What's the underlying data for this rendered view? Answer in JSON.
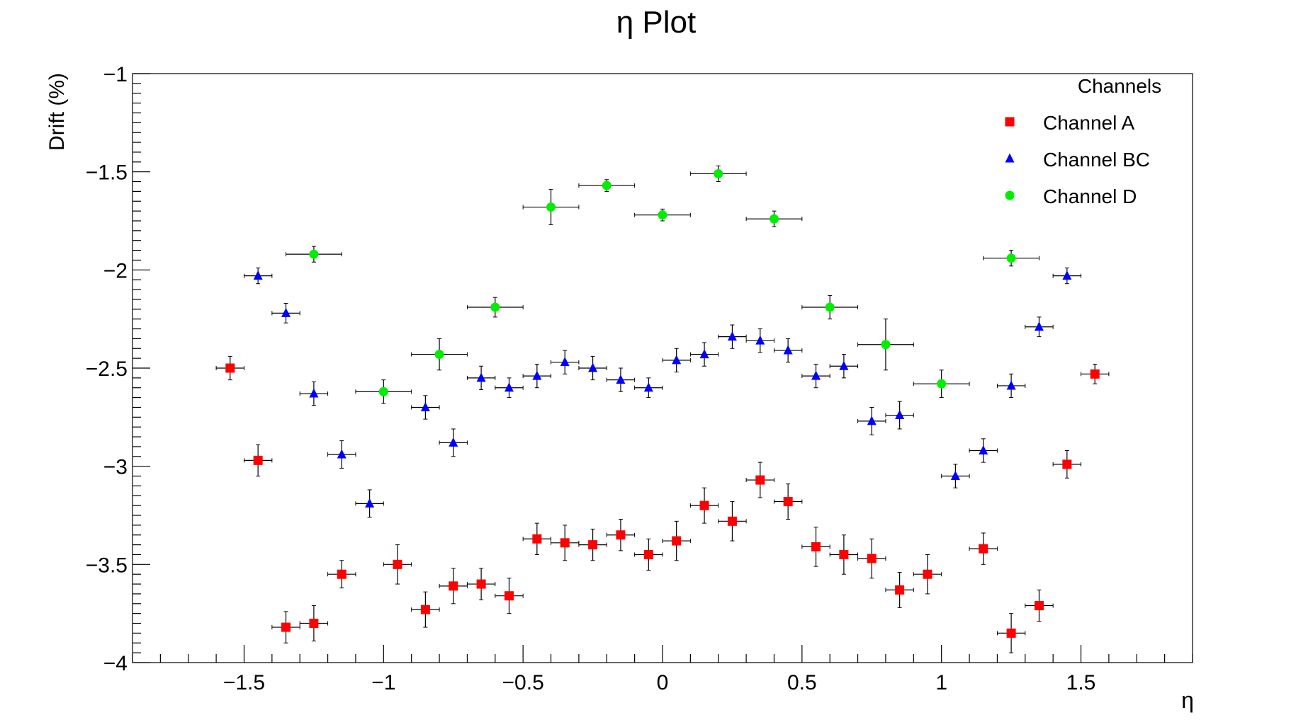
{
  "chart_data": {
    "type": "scatter",
    "title": "η Plot",
    "xlabel": "η",
    "ylabel": "Drift (%)",
    "xlim": [
      -1.9,
      1.9
    ],
    "ylim": [
      -4,
      -1
    ],
    "x_ticks": [
      -1.5,
      -1,
      -0.5,
      0,
      0.5,
      1,
      1.5
    ],
    "x_tick_labels": [
      "−1.5",
      "−1",
      "−0.5",
      "0",
      "0.5",
      "1",
      "1.5"
    ],
    "y_ticks": [
      -4,
      -3.5,
      -3,
      -2.5,
      -2,
      -1.5,
      -1
    ],
    "y_tick_labels": [
      "−4",
      "−3.5",
      "−3",
      "−2.5",
      "−2",
      "−1.5",
      "−1"
    ],
    "grid": false,
    "legend": {
      "title": "Channels",
      "position": "top-right"
    },
    "series": [
      {
        "name": "Channel A",
        "color": "#ff0000",
        "marker": "square",
        "points": [
          {
            "x": -1.55,
            "y": -2.5,
            "xerr": 0.05,
            "yerr": 0.06
          },
          {
            "x": -1.45,
            "y": -2.97,
            "xerr": 0.05,
            "yerr": 0.08
          },
          {
            "x": -1.35,
            "y": -3.82,
            "xerr": 0.05,
            "yerr": 0.08
          },
          {
            "x": -1.25,
            "y": -3.8,
            "xerr": 0.05,
            "yerr": 0.09
          },
          {
            "x": -1.15,
            "y": -3.55,
            "xerr": 0.05,
            "yerr": 0.07
          },
          {
            "x": -0.95,
            "y": -3.5,
            "xerr": 0.05,
            "yerr": 0.1
          },
          {
            "x": -0.85,
            "y": -3.73,
            "xerr": 0.05,
            "yerr": 0.09
          },
          {
            "x": -0.75,
            "y": -3.61,
            "xerr": 0.05,
            "yerr": 0.09
          },
          {
            "x": -0.65,
            "y": -3.6,
            "xerr": 0.05,
            "yerr": 0.08
          },
          {
            "x": -0.55,
            "y": -3.66,
            "xerr": 0.05,
            "yerr": 0.09
          },
          {
            "x": -0.45,
            "y": -3.37,
            "xerr": 0.05,
            "yerr": 0.08
          },
          {
            "x": -0.35,
            "y": -3.39,
            "xerr": 0.05,
            "yerr": 0.09
          },
          {
            "x": -0.25,
            "y": -3.4,
            "xerr": 0.05,
            "yerr": 0.08
          },
          {
            "x": -0.15,
            "y": -3.35,
            "xerr": 0.05,
            "yerr": 0.08
          },
          {
            "x": -0.05,
            "y": -3.45,
            "xerr": 0.05,
            "yerr": 0.08
          },
          {
            "x": 0.05,
            "y": -3.38,
            "xerr": 0.05,
            "yerr": 0.1
          },
          {
            "x": 0.15,
            "y": -3.2,
            "xerr": 0.05,
            "yerr": 0.09
          },
          {
            "x": 0.25,
            "y": -3.28,
            "xerr": 0.05,
            "yerr": 0.1
          },
          {
            "x": 0.35,
            "y": -3.07,
            "xerr": 0.05,
            "yerr": 0.09
          },
          {
            "x": 0.45,
            "y": -3.18,
            "xerr": 0.05,
            "yerr": 0.09
          },
          {
            "x": 0.55,
            "y": -3.41,
            "xerr": 0.05,
            "yerr": 0.1
          },
          {
            "x": 0.65,
            "y": -3.45,
            "xerr": 0.05,
            "yerr": 0.1
          },
          {
            "x": 0.75,
            "y": -3.47,
            "xerr": 0.05,
            "yerr": 0.1
          },
          {
            "x": 0.85,
            "y": -3.63,
            "xerr": 0.05,
            "yerr": 0.09
          },
          {
            "x": 0.95,
            "y": -3.55,
            "xerr": 0.05,
            "yerr": 0.1
          },
          {
            "x": 1.15,
            "y": -3.42,
            "xerr": 0.05,
            "yerr": 0.08
          },
          {
            "x": 1.25,
            "y": -3.85,
            "xerr": 0.05,
            "yerr": 0.1
          },
          {
            "x": 1.35,
            "y": -3.71,
            "xerr": 0.05,
            "yerr": 0.08
          },
          {
            "x": 1.45,
            "y": -2.99,
            "xerr": 0.05,
            "yerr": 0.07
          },
          {
            "x": 1.55,
            "y": -2.53,
            "xerr": 0.05,
            "yerr": 0.05
          }
        ]
      },
      {
        "name": "Channel BC",
        "color": "#0000ff",
        "marker": "triangle",
        "points": [
          {
            "x": -1.45,
            "y": -2.03,
            "xerr": 0.05,
            "yerr": 0.04
          },
          {
            "x": -1.35,
            "y": -2.22,
            "xerr": 0.05,
            "yerr": 0.05
          },
          {
            "x": -1.25,
            "y": -2.63,
            "xerr": 0.05,
            "yerr": 0.06
          },
          {
            "x": -1.15,
            "y": -2.94,
            "xerr": 0.05,
            "yerr": 0.07
          },
          {
            "x": -1.05,
            "y": -3.19,
            "xerr": 0.05,
            "yerr": 0.07
          },
          {
            "x": -0.85,
            "y": -2.7,
            "xerr": 0.05,
            "yerr": 0.06
          },
          {
            "x": -0.75,
            "y": -2.88,
            "xerr": 0.05,
            "yerr": 0.07
          },
          {
            "x": -0.65,
            "y": -2.55,
            "xerr": 0.05,
            "yerr": 0.06
          },
          {
            "x": -0.55,
            "y": -2.6,
            "xerr": 0.05,
            "yerr": 0.05
          },
          {
            "x": -0.45,
            "y": -2.54,
            "xerr": 0.05,
            "yerr": 0.06
          },
          {
            "x": -0.35,
            "y": -2.47,
            "xerr": 0.05,
            "yerr": 0.06
          },
          {
            "x": -0.25,
            "y": -2.5,
            "xerr": 0.05,
            "yerr": 0.06
          },
          {
            "x": -0.15,
            "y": -2.56,
            "xerr": 0.05,
            "yerr": 0.06
          },
          {
            "x": -0.05,
            "y": -2.6,
            "xerr": 0.05,
            "yerr": 0.05
          },
          {
            "x": 0.05,
            "y": -2.46,
            "xerr": 0.05,
            "yerr": 0.06
          },
          {
            "x": 0.15,
            "y": -2.43,
            "xerr": 0.05,
            "yerr": 0.06
          },
          {
            "x": 0.25,
            "y": -2.34,
            "xerr": 0.05,
            "yerr": 0.06
          },
          {
            "x": 0.35,
            "y": -2.36,
            "xerr": 0.05,
            "yerr": 0.06
          },
          {
            "x": 0.45,
            "y": -2.41,
            "xerr": 0.05,
            "yerr": 0.06
          },
          {
            "x": 0.55,
            "y": -2.54,
            "xerr": 0.05,
            "yerr": 0.06
          },
          {
            "x": 0.65,
            "y": -2.49,
            "xerr": 0.05,
            "yerr": 0.06
          },
          {
            "x": 0.75,
            "y": -2.77,
            "xerr": 0.05,
            "yerr": 0.07
          },
          {
            "x": 0.85,
            "y": -2.74,
            "xerr": 0.05,
            "yerr": 0.07
          },
          {
            "x": 1.05,
            "y": -3.05,
            "xerr": 0.05,
            "yerr": 0.06
          },
          {
            "x": 1.15,
            "y": -2.92,
            "xerr": 0.05,
            "yerr": 0.06
          },
          {
            "x": 1.25,
            "y": -2.59,
            "xerr": 0.05,
            "yerr": 0.06
          },
          {
            "x": 1.35,
            "y": -2.29,
            "xerr": 0.05,
            "yerr": 0.05
          },
          {
            "x": 1.45,
            "y": -2.03,
            "xerr": 0.05,
            "yerr": 0.04
          }
        ]
      },
      {
        "name": "Channel D",
        "color": "#00ee00",
        "marker": "circle",
        "points": [
          {
            "x": -1.25,
            "y": -1.92,
            "xerr": 0.1,
            "yerr": 0.04
          },
          {
            "x": -1.0,
            "y": -2.62,
            "xerr": 0.1,
            "yerr": 0.06
          },
          {
            "x": -0.8,
            "y": -2.43,
            "xerr": 0.1,
            "yerr": 0.08
          },
          {
            "x": -0.6,
            "y": -2.19,
            "xerr": 0.1,
            "yerr": 0.05
          },
          {
            "x": -0.4,
            "y": -1.68,
            "xerr": 0.1,
            "yerr": 0.09
          },
          {
            "x": -0.2,
            "y": -1.57,
            "xerr": 0.1,
            "yerr": 0.03
          },
          {
            "x": 0.0,
            "y": -1.72,
            "xerr": 0.1,
            "yerr": 0.03
          },
          {
            "x": 0.2,
            "y": -1.51,
            "xerr": 0.1,
            "yerr": 0.04
          },
          {
            "x": 0.4,
            "y": -1.74,
            "xerr": 0.1,
            "yerr": 0.04
          },
          {
            "x": 0.6,
            "y": -2.19,
            "xerr": 0.1,
            "yerr": 0.06
          },
          {
            "x": 0.8,
            "y": -2.38,
            "xerr": 0.1,
            "yerr": 0.13
          },
          {
            "x": 1.0,
            "y": -2.58,
            "xerr": 0.1,
            "yerr": 0.07
          },
          {
            "x": 1.25,
            "y": -1.94,
            "xerr": 0.1,
            "yerr": 0.04
          }
        ]
      }
    ]
  }
}
